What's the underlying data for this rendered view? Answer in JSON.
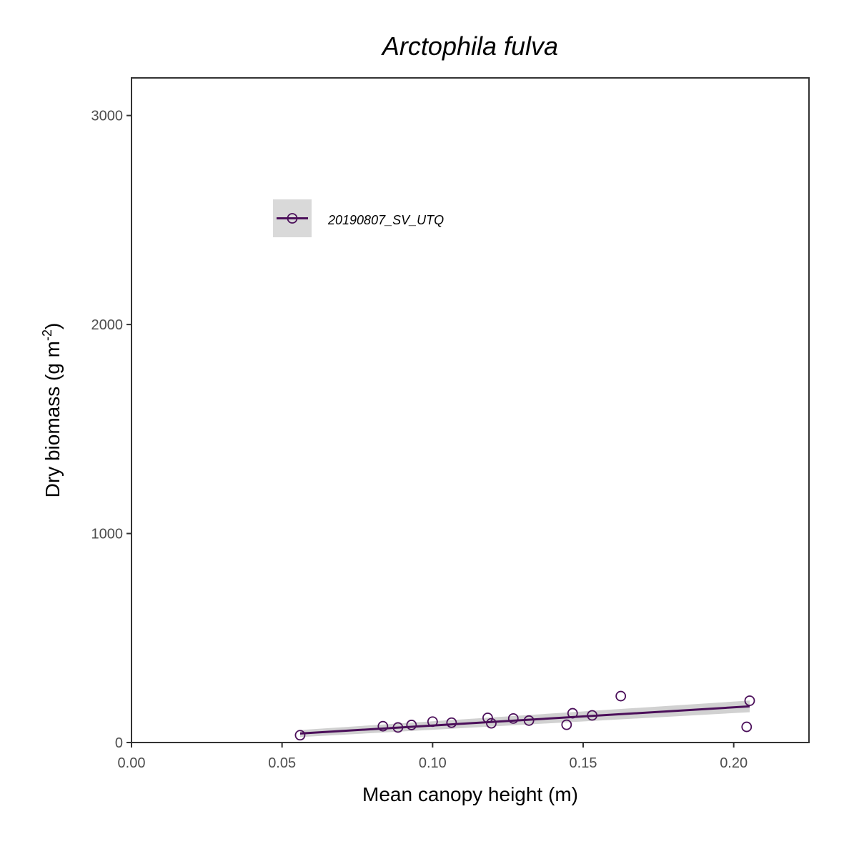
{
  "chart_data": {
    "type": "scatter",
    "title": "Arctophila fulva",
    "xlabel": "Mean canopy height (m)",
    "ylabel": {
      "text": "Dry biomass (g m",
      "superscript": "-2",
      "close": ")"
    },
    "xlim": [
      0.0,
      0.225
    ],
    "ylim": [
      0,
      3180
    ],
    "x_ticks": [
      0.0,
      0.05,
      0.1,
      0.15,
      0.2
    ],
    "x_tick_labels": [
      "0.00",
      "0.05",
      "0.10",
      "0.15",
      "0.20"
    ],
    "y_ticks": [
      0,
      1000,
      2000,
      3000
    ],
    "y_tick_labels": [
      "0",
      "1000",
      "2000",
      "3000"
    ],
    "grid": false,
    "legend_position": "top-left",
    "series": [
      {
        "name": "20190807_SV_UTQ",
        "color": "#4b0f5a",
        "points": [
          {
            "x": 0.056,
            "y": 35
          },
          {
            "x": 0.0835,
            "y": 78
          },
          {
            "x": 0.0885,
            "y": 72
          },
          {
            "x": 0.093,
            "y": 84
          },
          {
            "x": 0.1,
            "y": 100
          },
          {
            "x": 0.1063,
            "y": 95
          },
          {
            "x": 0.1183,
            "y": 118
          },
          {
            "x": 0.1195,
            "y": 92
          },
          {
            "x": 0.1268,
            "y": 115
          },
          {
            "x": 0.132,
            "y": 105
          },
          {
            "x": 0.1445,
            "y": 85
          },
          {
            "x": 0.1465,
            "y": 140
          },
          {
            "x": 0.153,
            "y": 130
          },
          {
            "x": 0.1625,
            "y": 222
          },
          {
            "x": 0.2043,
            "y": 75
          },
          {
            "x": 0.2053,
            "y": 200
          }
        ],
        "fit": {
          "x": [
            0.056,
            0.2053
          ],
          "y": [
            43,
            173
          ],
          "ci_lower": [
            26,
            145
          ],
          "ci_upper": [
            60,
            201
          ]
        }
      }
    ]
  }
}
